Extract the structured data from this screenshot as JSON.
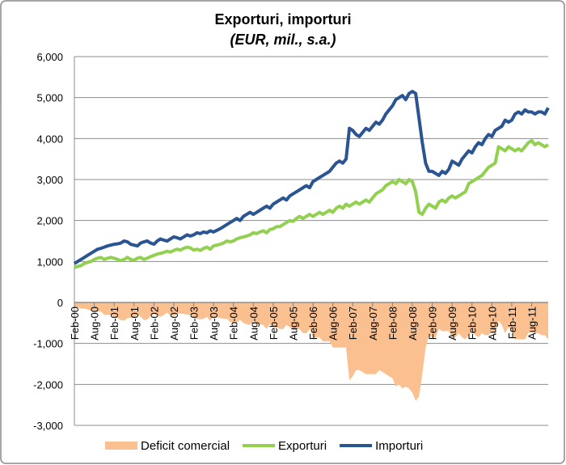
{
  "chart_data": {
    "type": "line",
    "title": "Exporturi, importuri",
    "subtitle": "(EUR, mil., s.a.)",
    "categories": [
      "Feb-00",
      null,
      null,
      null,
      null,
      null,
      "Aug-00",
      null,
      null,
      null,
      null,
      null,
      "Feb-01",
      null,
      null,
      null,
      null,
      null,
      "Aug-01",
      null,
      null,
      null,
      null,
      null,
      "Feb-02",
      null,
      null,
      null,
      null,
      null,
      "Aug-02",
      null,
      null,
      null,
      null,
      null,
      "Feb-03",
      null,
      null,
      null,
      null,
      null,
      "Aug-03",
      null,
      null,
      null,
      null,
      null,
      "Feb-04",
      null,
      null,
      null,
      null,
      null,
      "Aug-04",
      null,
      null,
      null,
      null,
      null,
      "Feb-05",
      null,
      null,
      null,
      null,
      null,
      "Aug-05",
      null,
      null,
      null,
      null,
      null,
      "Feb-06",
      null,
      null,
      null,
      null,
      null,
      "Aug-06",
      null,
      null,
      null,
      null,
      null,
      "Feb-07",
      null,
      null,
      null,
      null,
      null,
      "Aug-07",
      null,
      null,
      null,
      null,
      null,
      "Feb-08",
      null,
      null,
      null,
      null,
      null,
      "Aug-08",
      null,
      null,
      null,
      null,
      null,
      "Feb-09",
      null,
      null,
      null,
      null,
      null,
      "Aug-09",
      null,
      null,
      null,
      null,
      null,
      "Feb-10",
      null,
      null,
      null,
      null,
      null,
      "Aug-10",
      null,
      null,
      null,
      null,
      null,
      "Feb-11",
      null,
      null,
      null,
      null,
      null,
      "Aug-11",
      null,
      null,
      null,
      null,
      null
    ],
    "series": [
      {
        "name": "Deficit comercial",
        "kind": "area",
        "color": "#fac090",
        "values": [
          -100,
          -120,
          -150,
          -150,
          -170,
          -200,
          -200,
          -220,
          -220,
          -300,
          -300,
          -300,
          -340,
          -380,
          -430,
          -450,
          -380,
          -370,
          -370,
          -300,
          -350,
          -430,
          -420,
          -330,
          -270,
          -320,
          -350,
          -300,
          -250,
          -320,
          -330,
          -280,
          -270,
          -280,
          -300,
          -290,
          -370,
          -400,
          -410,
          -400,
          -350,
          -450,
          -340,
          -360,
          -380,
          -400,
          -400,
          -470,
          -500,
          -500,
          -420,
          -500,
          -530,
          -550,
          -450,
          -520,
          -530,
          -550,
          -650,
          -520,
          -600,
          -600,
          -650,
          -650,
          -550,
          -600,
          -670,
          -650,
          -650,
          -750,
          -750,
          -650,
          -850,
          -850,
          -850,
          -950,
          -950,
          -950,
          -1100,
          -1100,
          -1100,
          -1100,
          -1100,
          -1900,
          -1800,
          -1650,
          -1650,
          -1700,
          -1750,
          -1750,
          -1750,
          -1750,
          -1650,
          -1700,
          -1750,
          -1800,
          -1850,
          -2050,
          -2000,
          -2100,
          -2050,
          -2100,
          -2200,
          -2400,
          -2300,
          -1750,
          -1100,
          -800,
          -850,
          -850,
          -650,
          -700,
          -700,
          -700,
          -850,
          -850,
          -750,
          -850,
          -900,
          -800,
          -700,
          -800,
          -850,
          -750,
          -800,
          -800,
          -700,
          -800,
          -450,
          -550,
          -750,
          -600,
          -700,
          -900,
          -900,
          -900,
          -900,
          -750,
          -700,
          -750,
          -750,
          -800,
          -800,
          -900
        ]
      },
      {
        "name": "Exporturi",
        "kind": "line",
        "color": "#92d050",
        "values": [
          850,
          880,
          900,
          950,
          980,
          1000,
          1050,
          1080,
          1100,
          1050,
          1080,
          1100,
          1080,
          1050,
          1020,
          1050,
          1100,
          1050,
          1030,
          1080,
          1100,
          1050,
          1080,
          1120,
          1150,
          1180,
          1200,
          1220,
          1250,
          1230,
          1270,
          1300,
          1280,
          1320,
          1350,
          1330,
          1280,
          1300,
          1270,
          1320,
          1350,
          1300,
          1380,
          1400,
          1420,
          1450,
          1500,
          1480,
          1500,
          1550,
          1580,
          1600,
          1620,
          1650,
          1700,
          1680,
          1720,
          1750,
          1700,
          1780,
          1800,
          1850,
          1850,
          1900,
          1950,
          2000,
          1980,
          2050,
          2100,
          2050,
          2100,
          2150,
          2100,
          2150,
          2200,
          2150,
          2200,
          2250,
          2200,
          2300,
          2350,
          2300,
          2400,
          2350,
          2400,
          2450,
          2400,
          2450,
          2500,
          2450,
          2550,
          2650,
          2700,
          2750,
          2850,
          2900,
          2950,
          2900,
          3000,
          2950,
          2900,
          3000,
          2950,
          2700,
          2200,
          2150,
          2300,
          2400,
          2350,
          2300,
          2450,
          2500,
          2450,
          2550,
          2600,
          2550,
          2600,
          2650,
          2700,
          2900,
          2950,
          3000,
          3050,
          3100,
          3200,
          3300,
          3350,
          3400,
          3800,
          3750,
          3700,
          3800,
          3750,
          3700,
          3750,
          3700,
          3800,
          3900,
          3950,
          3850,
          3900,
          3850,
          3800,
          3850
        ]
      },
      {
        "name": "Importuri",
        "kind": "line",
        "color": "#2a5592",
        "values": [
          950,
          1000,
          1050,
          1100,
          1150,
          1200,
          1250,
          1300,
          1320,
          1350,
          1380,
          1400,
          1420,
          1430,
          1450,
          1500,
          1480,
          1420,
          1400,
          1380,
          1450,
          1480,
          1500,
          1450,
          1420,
          1500,
          1550,
          1520,
          1500,
          1550,
          1600,
          1580,
          1550,
          1600,
          1650,
          1620,
          1650,
          1700,
          1680,
          1720,
          1700,
          1750,
          1720,
          1760,
          1800,
          1850,
          1900,
          1950,
          2000,
          2050,
          2000,
          2100,
          2150,
          2200,
          2150,
          2200,
          2250,
          2300,
          2350,
          2300,
          2400,
          2450,
          2500,
          2550,
          2500,
          2600,
          2650,
          2700,
          2750,
          2800,
          2850,
          2800,
          2950,
          3000,
          3050,
          3100,
          3150,
          3200,
          3300,
          3400,
          3450,
          3400,
          3500,
          4250,
          4200,
          4100,
          4050,
          4150,
          4250,
          4200,
          4300,
          4400,
          4350,
          4450,
          4600,
          4700,
          4800,
          4950,
          5000,
          5050,
          4950,
          5100,
          5150,
          5100,
          4500,
          3900,
          3400,
          3200,
          3200,
          3150,
          3100,
          3200,
          3150,
          3250,
          3450,
          3400,
          3350,
          3500,
          3600,
          3700,
          3650,
          3800,
          3900,
          3850,
          4000,
          4100,
          4050,
          4200,
          4250,
          4300,
          4450,
          4400,
          4450,
          4600,
          4650,
          4600,
          4700,
          4650,
          4650,
          4600,
          4650,
          4650,
          4600,
          4750
        ]
      }
    ],
    "ylim": [
      -3000,
      6000
    ],
    "yticks": [
      {
        "value": -3000,
        "label": "-3,000"
      },
      {
        "value": -2000,
        "label": "-2,000"
      },
      {
        "value": -1000,
        "label": "-1,000"
      },
      0,
      {
        "value": 1000,
        "label": "1,000"
      },
      {
        "value": 2000,
        "label": "2,000"
      },
      {
        "value": 3000,
        "label": "3,000"
      },
      {
        "value": 4000,
        "label": "4,000"
      },
      {
        "value": 5000,
        "label": "5,000"
      },
      {
        "value": 6000,
        "label": "6,000"
      }
    ],
    "grid": true,
    "legend": "bottom"
  }
}
